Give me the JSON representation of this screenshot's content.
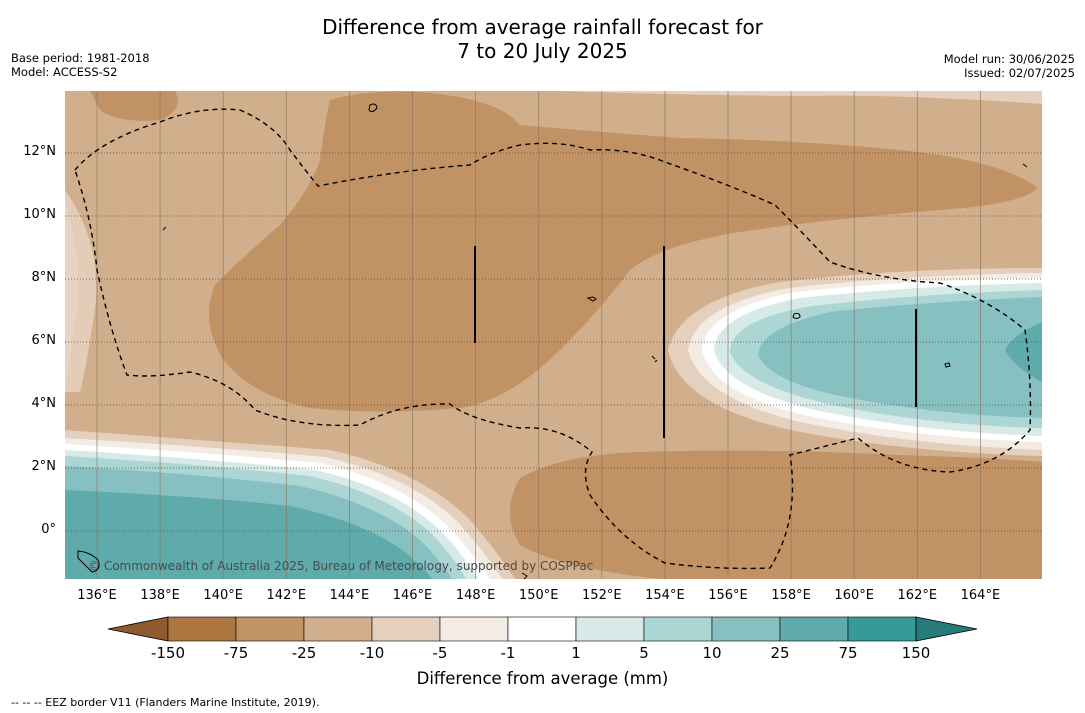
{
  "title_line1": "Difference from average rainfall forecast for",
  "title_line2": "7 to 20 July 2025",
  "base_period": "Base period: 1981-2018",
  "model": "Model: ACCESS-S2",
  "model_run": "Model run: 30/06/2025",
  "issued": "Issued: 02/07/2025",
  "copyright": "© Commonwealth of Australia 2025, Bureau of Meteorology, supported by COSPPac",
  "footnote": "-- -- -- EEZ border V11 (Flanders Marine Institute, 2019).",
  "colorbar": {
    "title": "Difference from average (mm)",
    "ticks": [
      "-150",
      "-75",
      "-25",
      "-10",
      "-5",
      "-1",
      "1",
      "5",
      "10",
      "25",
      "75",
      "150"
    ],
    "colors": [
      "#8e5a2e",
      "#ad7640",
      "#c19264",
      "#d2af8c",
      "#e4d0bd",
      "#f2ece5",
      "#ffffff",
      "#d7eae8",
      "#acd6d4",
      "#87c0c0",
      "#5fabab",
      "#369a98",
      "#267a78"
    ]
  },
  "axes": {
    "lat_labels": [
      "12°N",
      "10°N",
      "8°N",
      "6°N",
      "4°N",
      "2°N",
      "0°"
    ],
    "lon_labels": [
      "136°E",
      "138°E",
      "140°E",
      "142°E",
      "144°E",
      "146°E",
      "148°E",
      "150°E",
      "152°E",
      "154°E",
      "156°E",
      "158°E",
      "160°E",
      "162°E",
      "164°E"
    ]
  }
}
